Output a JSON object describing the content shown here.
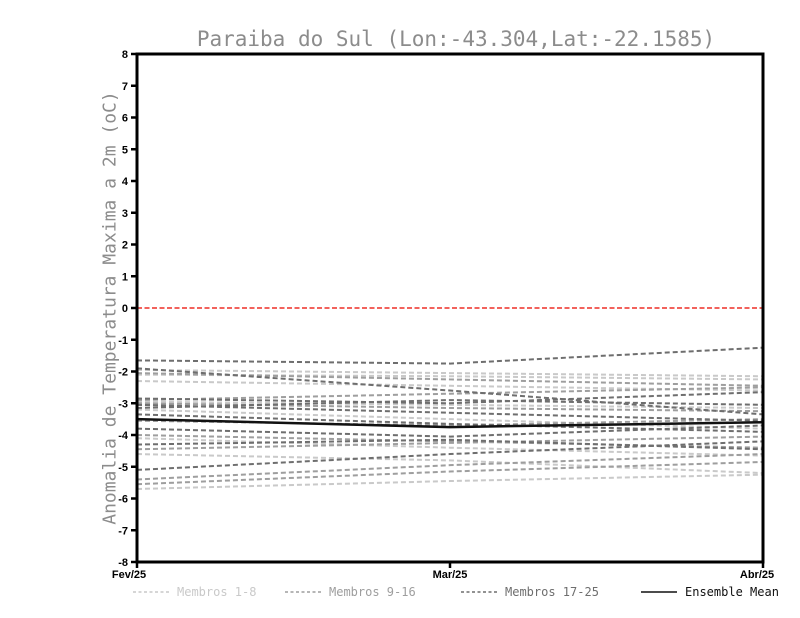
{
  "title": "Paraiba do Sul (Lon:-43.304,Lat:-22.1585)",
  "y_axis": {
    "label": "Anomalia de Temperatura Maxima a 2m (oC)",
    "min": -8,
    "max": 8,
    "tick_step": 1
  },
  "x_axis": {
    "labels": [
      "Fev/25",
      "Mar/25",
      "Abr/25"
    ]
  },
  "colors": {
    "members_1_8": "#c9c9c9",
    "members_9_16": "#9e9e9e",
    "members_17_25": "#6e6e6e",
    "ensemble_mean": "#111111",
    "zero_line": "#f2625c",
    "axis": "#000000",
    "title_text": "#8c8c8c"
  },
  "legend": [
    {
      "label": "Membros 1-8",
      "color": "#c9c9c9",
      "style": "dashed"
    },
    {
      "label": "Membros 9-16",
      "color": "#9e9e9e",
      "style": "dashed"
    },
    {
      "label": "Membros 17-25",
      "color": "#6e6e6e",
      "style": "dashed"
    },
    {
      "label": "Ensemble Mean",
      "color": "#111111",
      "style": "solid"
    }
  ],
  "chart_data": {
    "type": "line",
    "title": "Paraiba do Sul (Lon:-43.304,Lat:-22.1585)",
    "xlabel": "",
    "ylabel": "Anomalia de Temperatura Maxima a 2m (oC)",
    "x": [
      "Fev/25",
      "Mar/25",
      "Abr/25"
    ],
    "ylim": [
      -8,
      8
    ],
    "grid": false,
    "legend_position": "bottom",
    "zero_line": {
      "y": 0,
      "color": "#f2625c",
      "style": "dashed"
    },
    "series": [
      {
        "name": "Membro 1",
        "group": "1-8",
        "values": [
          -1.95,
          -2.05,
          -2.15
        ]
      },
      {
        "name": "Membro 2",
        "group": "1-8",
        "values": [
          -2.1,
          -2.15,
          -2.25
        ]
      },
      {
        "name": "Membro 3",
        "group": "1-8",
        "values": [
          -2.3,
          -2.45,
          -2.6
        ]
      },
      {
        "name": "Membro 4",
        "group": "1-8",
        "values": [
          -2.95,
          -3.05,
          -3.15
        ]
      },
      {
        "name": "Membro 5",
        "group": "1-8",
        "values": [
          -3.2,
          -3.5,
          -3.8
        ]
      },
      {
        "name": "Membro 6",
        "group": "1-8",
        "values": [
          -4.1,
          -4.4,
          -4.65
        ]
      },
      {
        "name": "Membro 7",
        "group": "1-8",
        "values": [
          -4.6,
          -4.8,
          -5.2
        ]
      },
      {
        "name": "Membro 8",
        "group": "1-8",
        "values": [
          -5.7,
          -5.45,
          -5.25
        ]
      },
      {
        "name": "Membro 9",
        "group": "9-16",
        "values": [
          -2.05,
          -2.25,
          -2.45
        ]
      },
      {
        "name": "Membro 10",
        "group": "9-16",
        "values": [
          -2.9,
          -2.7,
          -2.5
        ]
      },
      {
        "name": "Membro 11",
        "group": "9-16",
        "values": [
          -3.0,
          -3.15,
          -3.25
        ]
      },
      {
        "name": "Membro 12",
        "group": "9-16",
        "values": [
          -3.55,
          -3.7,
          -3.5
        ]
      },
      {
        "name": "Membro 13",
        "group": "9-16",
        "values": [
          -4.0,
          -4.2,
          -4.4
        ]
      },
      {
        "name": "Membro 14",
        "group": "9-16",
        "values": [
          -4.45,
          -4.25,
          -4.05
        ]
      },
      {
        "name": "Membro 15",
        "group": "9-16",
        "values": [
          -5.4,
          -4.95,
          -4.6
        ]
      },
      {
        "name": "Membro 16",
        "group": "9-16",
        "values": [
          -5.55,
          -5.15,
          -4.85
        ]
      },
      {
        "name": "Membro 17",
        "group": "17-25",
        "values": [
          -1.65,
          -1.75,
          -1.25
        ]
      },
      {
        "name": "Membro 18",
        "group": "17-25",
        "values": [
          -1.9,
          -2.6,
          -3.35
        ]
      },
      {
        "name": "Membro 19",
        "group": "17-25",
        "values": [
          -2.85,
          -3.0,
          -2.65
        ]
      },
      {
        "name": "Membro 20",
        "group": "17-25",
        "values": [
          -3.05,
          -3.3,
          -3.55
        ]
      },
      {
        "name": "Membro 21",
        "group": "17-25",
        "values": [
          -3.15,
          -2.9,
          -3.05
        ]
      },
      {
        "name": "Membro 22",
        "group": "17-25",
        "values": [
          -3.35,
          -3.65,
          -3.9
        ]
      },
      {
        "name": "Membro 23",
        "group": "17-25",
        "values": [
          -3.8,
          -4.05,
          -3.7
        ]
      },
      {
        "name": "Membro 24",
        "group": "17-25",
        "values": [
          -4.3,
          -4.15,
          -4.45
        ]
      },
      {
        "name": "Membro 25",
        "group": "17-25",
        "values": [
          -5.1,
          -4.6,
          -4.2
        ]
      },
      {
        "name": "Ensemble Mean",
        "group": "mean",
        "values": [
          -3.5,
          -3.75,
          -3.6
        ]
      }
    ]
  }
}
